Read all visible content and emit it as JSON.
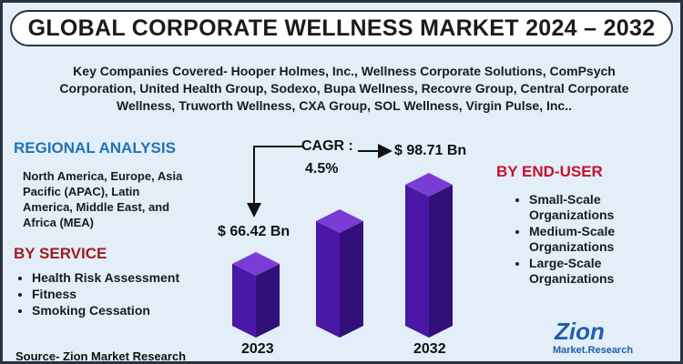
{
  "header": {
    "title": "GLOBAL CORPORATE WELLNESS MARKET 2024 – 2032"
  },
  "companies": "Key Companies Covered- Hooper Holmes, Inc., Wellness Corporate Solutions, ComPsych Corporation, United Health Group, Sodexo, Bupa Wellness, Recovre Group, Central Corporate Wellness, Truworth Wellness, CXA Group, SOL Wellness, Virgin Pulse, Inc..",
  "regional": {
    "title": "REGIONAL ANALYSIS",
    "text": "North America, Europe, Asia Pacific (APAC), Latin America, Middle East, and Africa (MEA)"
  },
  "service": {
    "title": "BY SERVICE",
    "items": [
      "Health Risk Assessment",
      "Fitness",
      "Smoking Cessation"
    ]
  },
  "end_user": {
    "title": "BY END-USER",
    "items": [
      "Small-Scale Organizations",
      "Medium-Scale Organizations",
      "Large-Scale Organizations"
    ]
  },
  "growth": {
    "start_value": "$ 66.42 Bn",
    "end_value": "$ 98.71 Bn",
    "cagr_label": "CAGR :",
    "cagr": "4.5%",
    "start_year": "2023",
    "end_year": "2032"
  },
  "source": "Source- Zion Market Research",
  "logo": {
    "name": "Zion",
    "sub": "Market.Research"
  }
}
